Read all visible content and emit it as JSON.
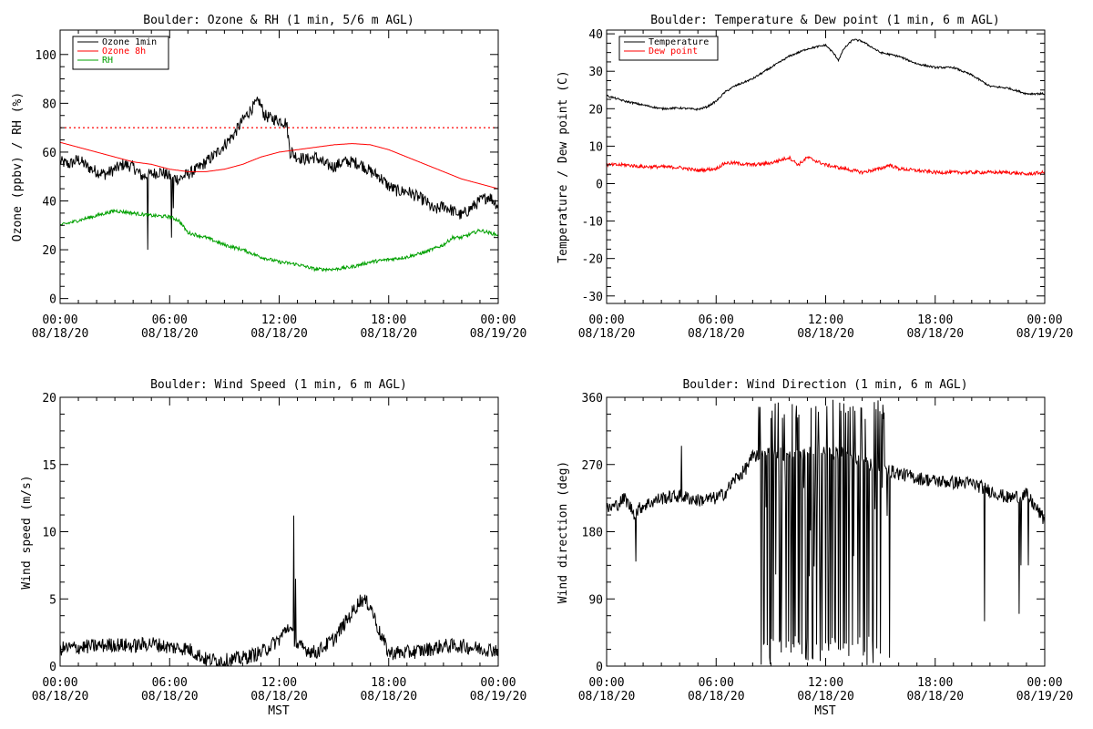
{
  "chart_data": [
    {
      "type": "line",
      "title": "Boulder: Ozone & RH (1 min, 5/6 m AGL)",
      "xlabel": "",
      "ylabel": "Ozone (ppbv) / RH (%)",
      "ylim": [
        -2,
        110
      ],
      "yticks": [
        "0",
        "20",
        "40",
        "60",
        "80",
        "100"
      ],
      "ytick_values": [
        0,
        20,
        40,
        60,
        80,
        100
      ],
      "xticks": [
        {
          "time": "00:00",
          "date": "08/18/20"
        },
        {
          "time": "06:00",
          "date": "08/18/20"
        },
        {
          "time": "12:00",
          "date": "08/18/20"
        },
        {
          "time": "18:00",
          "date": "08/18/20"
        },
        {
          "time": "00:00",
          "date": "08/19/20"
        }
      ],
      "xlim_hours": [
        0,
        24
      ],
      "reference_line": {
        "y": 70,
        "color": "#ff0000",
        "style": "dotted"
      },
      "legend_position": "top-left",
      "series": [
        {
          "name": "Ozone 1min",
          "color": "#000000",
          "noise": 2.5,
          "points": [
            [
              0,
              56
            ],
            [
              0.5,
              55
            ],
            [
              1,
              57
            ],
            [
              1.5,
              54
            ],
            [
              2,
              52
            ],
            [
              2.5,
              51
            ],
            [
              3,
              53
            ],
            [
              3.5,
              55
            ],
            [
              4,
              54
            ],
            [
              4.5,
              50
            ],
            [
              5,
              51
            ],
            [
              5.5,
              52
            ],
            [
              6,
              50
            ],
            [
              6.5,
              49
            ],
            [
              7,
              51
            ],
            [
              7.5,
              53
            ],
            [
              8,
              56
            ],
            [
              8.5,
              59
            ],
            [
              9,
              63
            ],
            [
              9.5,
              67
            ],
            [
              10,
              73
            ],
            [
              10.5,
              78
            ],
            [
              10.9,
              81
            ],
            [
              11.2,
              75
            ],
            [
              11.5,
              74
            ],
            [
              12,
              73
            ],
            [
              12.4,
              72
            ],
            [
              12.6,
              60
            ],
            [
              13,
              58
            ],
            [
              13.5,
              57
            ],
            [
              14,
              58
            ],
            [
              14.5,
              55
            ],
            [
              15,
              54
            ],
            [
              15.5,
              56
            ],
            [
              16,
              56
            ],
            [
              16.5,
              55
            ],
            [
              17,
              52
            ],
            [
              17.5,
              50
            ],
            [
              18,
              46
            ],
            [
              18.5,
              44
            ],
            [
              19,
              44
            ],
            [
              19.5,
              42
            ],
            [
              20,
              40
            ],
            [
              20.5,
              36
            ],
            [
              21,
              38
            ],
            [
              21.5,
              36
            ],
            [
              22,
              34
            ],
            [
              22.5,
              37
            ],
            [
              23,
              40
            ],
            [
              23.5,
              42
            ],
            [
              24,
              38
            ]
          ],
          "spikes": [
            [
              4.8,
              20
            ],
            [
              6.1,
              25
            ],
            [
              6.2,
              37
            ],
            [
              12.7,
              62
            ]
          ]
        },
        {
          "name": "Ozone 8h",
          "color": "#ff0000",
          "noise": 0,
          "points": [
            [
              0,
              64
            ],
            [
              1,
              62
            ],
            [
              2,
              60
            ],
            [
              3,
              58
            ],
            [
              4,
              56
            ],
            [
              5,
              55
            ],
            [
              6,
              53
            ],
            [
              7,
              52
            ],
            [
              8,
              52
            ],
            [
              9,
              53
            ],
            [
              10,
              55
            ],
            [
              11,
              58
            ],
            [
              12,
              60
            ],
            [
              13,
              61
            ],
            [
              14,
              62
            ],
            [
              15,
              63
            ],
            [
              16,
              63.5
            ],
            [
              17,
              63
            ],
            [
              18,
              61
            ],
            [
              19,
              58
            ],
            [
              20,
              55
            ],
            [
              21,
              52
            ],
            [
              22,
              49
            ],
            [
              23,
              47
            ],
            [
              24,
              45
            ]
          ]
        },
        {
          "name": "RH",
          "color": "#00a000",
          "noise": 0.7,
          "points": [
            [
              0,
              30
            ],
            [
              1,
              32
            ],
            [
              2,
              34
            ],
            [
              3,
              36
            ],
            [
              4,
              35
            ],
            [
              5,
              34
            ],
            [
              6,
              33.5
            ],
            [
              6.5,
              32
            ],
            [
              7,
              27
            ],
            [
              8,
              25
            ],
            [
              9,
              22
            ],
            [
              10,
              20
            ],
            [
              11,
              17
            ],
            [
              12,
              15
            ],
            [
              13,
              14
            ],
            [
              14,
              12
            ],
            [
              15,
              12
            ],
            [
              16,
              13
            ],
            [
              17,
              15
            ],
            [
              18,
              16
            ],
            [
              19,
              17
            ],
            [
              20,
              19
            ],
            [
              21,
              22
            ],
            [
              21.5,
              25
            ],
            [
              22,
              25
            ],
            [
              23,
              28
            ],
            [
              24,
              26
            ]
          ]
        }
      ]
    },
    {
      "type": "line",
      "title": "Boulder: Temperature & Dew point (1 min, 6 m AGL)",
      "xlabel": "",
      "ylabel": "Temperature / Dew point (C)",
      "ylim": [
        -32,
        41
      ],
      "yticks": [
        "-30",
        "-20",
        "-10",
        "0",
        "10",
        "20",
        "30",
        "40"
      ],
      "ytick_values": [
        -30,
        -20,
        -10,
        0,
        10,
        20,
        30,
        40
      ],
      "xticks": [
        {
          "time": "00:00",
          "date": "08/18/20"
        },
        {
          "time": "06:00",
          "date": "08/18/20"
        },
        {
          "time": "12:00",
          "date": "08/18/20"
        },
        {
          "time": "18:00",
          "date": "08/18/20"
        },
        {
          "time": "00:00",
          "date": "08/19/20"
        }
      ],
      "xlim_hours": [
        0,
        24
      ],
      "legend_position": "top-left",
      "series": [
        {
          "name": "Temperature",
          "color": "#000000",
          "noise": 0.25,
          "points": [
            [
              0,
              23.5
            ],
            [
              1,
              22
            ],
            [
              2,
              21
            ],
            [
              3,
              20
            ],
            [
              4,
              20.2
            ],
            [
              5,
              19.8
            ],
            [
              5.5,
              20.5
            ],
            [
              6,
              22
            ],
            [
              6.5,
              24.5
            ],
            [
              7,
              26
            ],
            [
              8,
              28
            ],
            [
              9,
              31
            ],
            [
              10,
              34
            ],
            [
              11,
              36
            ],
            [
              12,
              37
            ],
            [
              12.4,
              35
            ],
            [
              12.7,
              33
            ],
            [
              13,
              36
            ],
            [
              13.5,
              38.5
            ],
            [
              14,
              38
            ],
            [
              15,
              35
            ],
            [
              16,
              34
            ],
            [
              17,
              32
            ],
            [
              18,
              31
            ],
            [
              19,
              31
            ],
            [
              20,
              29
            ],
            [
              21,
              26
            ],
            [
              22,
              25.5
            ],
            [
              23,
              24
            ],
            [
              24,
              24
            ]
          ]
        },
        {
          "name": "Dew point",
          "color": "#ff0000",
          "noise": 0.45,
          "points": [
            [
              0,
              5
            ],
            [
              1,
              5
            ],
            [
              2,
              4.5
            ],
            [
              3,
              4.5
            ],
            [
              4,
              4.3
            ],
            [
              5,
              3.5
            ],
            [
              6,
              4
            ],
            [
              6.5,
              5.5
            ],
            [
              7,
              5.5
            ],
            [
              8,
              5
            ],
            [
              9,
              5.5
            ],
            [
              10,
              7
            ],
            [
              10.5,
              5
            ],
            [
              11,
              7
            ],
            [
              11.5,
              6
            ],
            [
              12,
              5
            ],
            [
              13,
              4
            ],
            [
              14,
              3
            ],
            [
              15,
              4
            ],
            [
              15.5,
              5
            ],
            [
              16,
              4
            ],
            [
              17,
              3.5
            ],
            [
              18,
              3
            ],
            [
              19,
              3
            ],
            [
              20,
              3
            ],
            [
              21,
              3
            ],
            [
              22,
              3
            ],
            [
              23,
              2.5
            ],
            [
              24,
              3
            ]
          ]
        }
      ]
    },
    {
      "type": "line",
      "title": "Boulder: Wind Speed (1 min, 6 m AGL)",
      "xlabel": "MST",
      "ylabel": "Wind speed (m/s)",
      "ylim": [
        0,
        20
      ],
      "yticks": [
        "0",
        "5",
        "10",
        "15",
        "20"
      ],
      "ytick_values": [
        0,
        5,
        10,
        15,
        20
      ],
      "xticks": [
        {
          "time": "00:00",
          "date": "08/18/20"
        },
        {
          "time": "06:00",
          "date": "08/18/20"
        },
        {
          "time": "12:00",
          "date": "08/18/20"
        },
        {
          "time": "18:00",
          "date": "08/18/20"
        },
        {
          "time": "00:00",
          "date": "08/19/20"
        }
      ],
      "xlim_hours": [
        0,
        24
      ],
      "series": [
        {
          "name": "",
          "color": "#000000",
          "noise": 0.55,
          "min": 0,
          "points": [
            [
              0,
              1.3
            ],
            [
              1,
              1.4
            ],
            [
              2,
              1.5
            ],
            [
              3,
              1.6
            ],
            [
              4,
              1.5
            ],
            [
              5,
              1.7
            ],
            [
              6,
              1.4
            ],
            [
              7,
              1.3
            ],
            [
              8,
              0.5
            ],
            [
              9,
              0.4
            ],
            [
              10,
              0.6
            ],
            [
              11,
              1.0
            ],
            [
              12,
              2.0
            ],
            [
              12.5,
              3.0
            ],
            [
              13,
              1.5
            ],
            [
              14,
              1.0
            ],
            [
              15,
              2.0
            ],
            [
              16,
              4.0
            ],
            [
              16.5,
              5.0
            ],
            [
              17,
              4.5
            ],
            [
              17.5,
              2.5
            ],
            [
              18,
              1.0
            ],
            [
              19,
              1.0
            ],
            [
              20,
              1.2
            ],
            [
              21,
              1.5
            ],
            [
              22,
              1.5
            ],
            [
              23,
              1.3
            ],
            [
              24,
              1.2
            ]
          ],
          "spikes": [
            [
              12.8,
              11.2
            ],
            [
              12.9,
              6.5
            ]
          ]
        }
      ]
    },
    {
      "type": "line",
      "title": "Boulder: Wind Direction (1 min, 6 m AGL)",
      "xlabel": "MST",
      "ylabel": "Wind direction (deg)",
      "ylim": [
        0,
        360
      ],
      "yticks": [
        "0",
        "90",
        "180",
        "270",
        "360"
      ],
      "ytick_values": [
        0,
        90,
        180,
        270,
        360
      ],
      "xticks": [
        {
          "time": "00:00",
          "date": "08/18/20"
        },
        {
          "time": "06:00",
          "date": "08/18/20"
        },
        {
          "time": "12:00",
          "date": "08/18/20"
        },
        {
          "time": "18:00",
          "date": "08/18/20"
        },
        {
          "time": "00:00",
          "date": "08/19/20"
        }
      ],
      "xlim_hours": [
        0,
        24
      ],
      "series": [
        {
          "name": "",
          "color": "#000000",
          "noise": 9,
          "min": 0,
          "max": 360,
          "points": [
            [
              0,
              210
            ],
            [
              0.5,
              215
            ],
            [
              1,
              225
            ],
            [
              1.5,
              205
            ],
            [
              2,
              215
            ],
            [
              3,
              225
            ],
            [
              4,
              228
            ],
            [
              5,
              222
            ],
            [
              6,
              225
            ],
            [
              6.5,
              232
            ],
            [
              7,
              250
            ],
            [
              7.5,
              260
            ],
            [
              8,
              280
            ],
            [
              9,
              290
            ],
            [
              10,
              280
            ],
            [
              11,
              285
            ],
            [
              12,
              285
            ],
            [
              13,
              285
            ],
            [
              14,
              275
            ],
            [
              15,
              265
            ],
            [
              16,
              258
            ],
            [
              17,
              252
            ],
            [
              18,
              248
            ],
            [
              19,
              246
            ],
            [
              20,
              245
            ],
            [
              21,
              235
            ],
            [
              22,
              225
            ],
            [
              23,
              230
            ],
            [
              24,
              195
            ]
          ],
          "wild_range": [
            [
              8.2,
              15.5
            ]
          ],
          "spikes": [
            [
              1.6,
              140
            ],
            [
              4.1,
              295
            ],
            [
              20.7,
              60
            ],
            [
              22.6,
              70
            ],
            [
              22.7,
              135
            ],
            [
              23.1,
              135
            ]
          ]
        }
      ]
    }
  ]
}
